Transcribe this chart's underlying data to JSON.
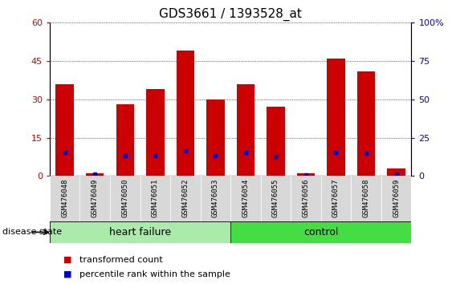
{
  "title": "GDS3661 / 1393528_at",
  "categories": [
    "GSM476048",
    "GSM476049",
    "GSM476050",
    "GSM476051",
    "GSM476052",
    "GSM476053",
    "GSM476054",
    "GSM476055",
    "GSM476056",
    "GSM476057",
    "GSM476058",
    "GSM476059"
  ],
  "transformed_count": [
    36,
    1,
    28,
    34,
    49,
    30,
    36,
    27,
    1,
    46,
    41,
    3
  ],
  "percentile_rank": [
    15.5,
    1.2,
    13.5,
    13.5,
    16.5,
    13.5,
    15.5,
    13.0,
    0.8,
    15.5,
    15.0,
    1.5
  ],
  "left_ylim": [
    0,
    60
  ],
  "right_ylim": [
    0,
    100
  ],
  "left_yticks": [
    0,
    15,
    30,
    45,
    60
  ],
  "right_yticks": [
    0,
    25,
    50,
    75,
    100
  ],
  "right_yticklabels": [
    "0",
    "25",
    "50",
    "75",
    "100%"
  ],
  "left_yticklabels": [
    "0",
    "15",
    "30",
    "45",
    "60"
  ],
  "bar_color": "#cc0000",
  "dot_color": "#0000cc",
  "heart_failure_color": "#aaeaaa",
  "control_color": "#44dd44",
  "groups": [
    {
      "label": "heart failure",
      "start": 0,
      "end": 6
    },
    {
      "label": "control",
      "start": 6,
      "end": 12
    }
  ],
  "disease_state_label": "disease state",
  "legend_items": [
    {
      "label": "transformed count",
      "color": "#cc0000"
    },
    {
      "label": "percentile rank within the sample",
      "color": "#0000cc"
    }
  ],
  "title_fontsize": 11,
  "tick_fontsize": 8,
  "label_fontsize": 9
}
